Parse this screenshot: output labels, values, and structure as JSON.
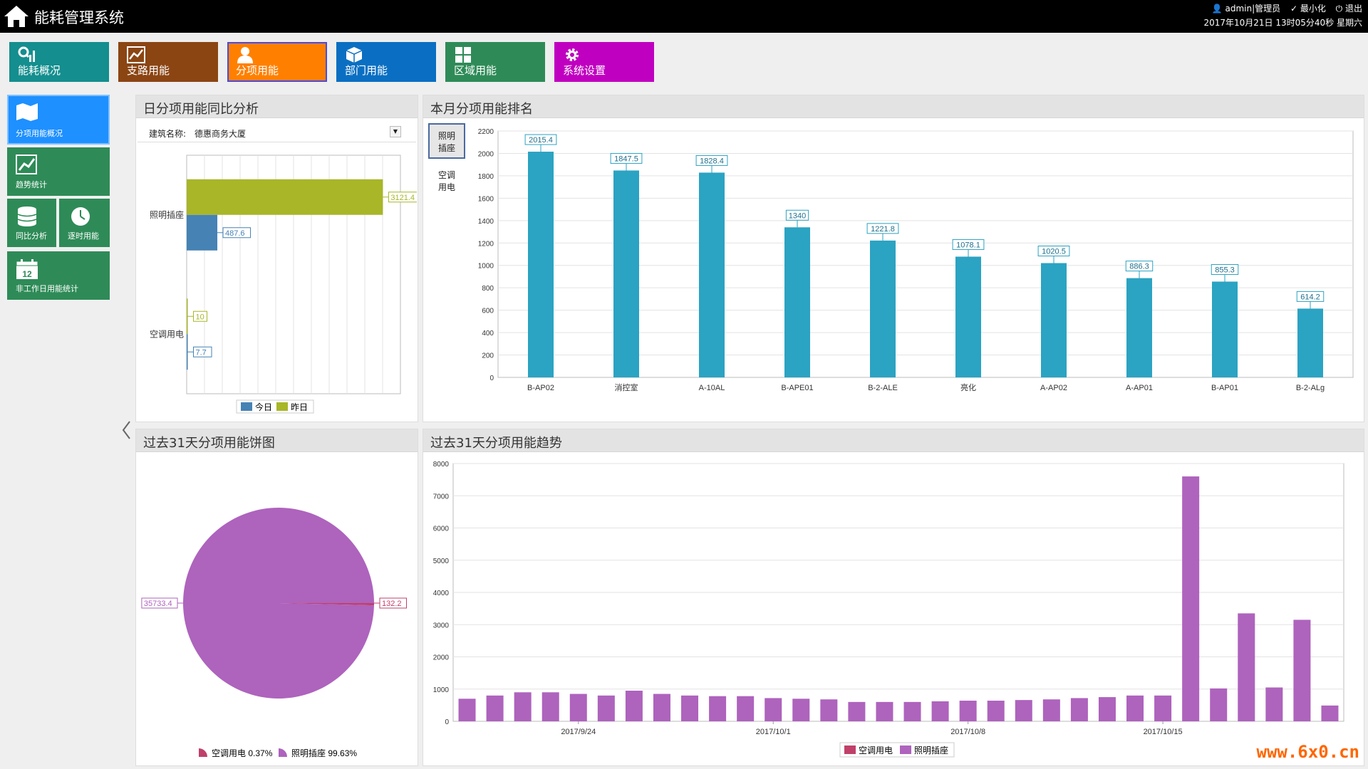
{
  "app": {
    "title": "能耗管理系统",
    "user": "admin|管理员",
    "minimize": "最小化",
    "logout": "退出",
    "datetime": "2017年10月21日 13时05分40秒 星期六"
  },
  "nav": [
    {
      "label": "能耗概况",
      "color": "#148e8e",
      "icon": "search-chart-icon"
    },
    {
      "label": "支路用能",
      "color": "#8b4513",
      "icon": "line-chart-icon"
    },
    {
      "label": "分项用能",
      "color": "#ff8000",
      "icon": "user-icon"
    },
    {
      "label": "部门用能",
      "color": "#0a6fc2",
      "icon": "cube-icon"
    },
    {
      "label": "区域用能",
      "color": "#2e8b57",
      "icon": "grid-icon"
    },
    {
      "label": "系统设置",
      "color": "#c000c0",
      "icon": "gear-icon"
    }
  ],
  "sidebar": [
    {
      "label": "分项用能概况",
      "icon": "map-icon",
      "color": "#1e90ff"
    },
    {
      "label": "趋势统计",
      "icon": "trend-icon",
      "color": "#2e8b57"
    },
    {
      "label": "同比分析",
      "icon": "database-icon",
      "color": "#2e8b57"
    },
    {
      "label": "逐时用能",
      "icon": "clock-icon",
      "color": "#2e8b57"
    },
    {
      "label": "非工作日用能统计",
      "icon": "calendar-icon",
      "color": "#2e8b57",
      "calendar_day": "12"
    }
  ],
  "panels": {
    "daily": {
      "title": "日分项用能同比分析",
      "building_label": "建筑名称:",
      "building_value": "德惠商务大厦"
    },
    "ranking": {
      "title": "本月分项用能排名",
      "tabs": [
        "照明插座",
        "空调用电"
      ]
    },
    "pie": {
      "title": "过去31天分项用能饼图"
    },
    "trend": {
      "title": "过去31天分项用能趋势"
    }
  },
  "colors": {
    "today": "#4682b4",
    "yesterday": "#a8b628",
    "rank_bar": "#2ba3c2",
    "pie_lighting": "#ae63bd",
    "pie_ac": "#c0406a",
    "trend_bar": "#ae63bd"
  },
  "chart_data": [
    {
      "type": "bar",
      "orientation": "horizontal",
      "categories": [
        "照明插座",
        "空调用电"
      ],
      "series": [
        {
          "name": "今日",
          "values": [
            487.6,
            7.7
          ]
        },
        {
          "name": "昨日",
          "values": [
            3121.4,
            10
          ]
        }
      ],
      "xlim": [
        0,
        3400
      ],
      "legend": "bottom",
      "grid": true
    },
    {
      "type": "bar",
      "categories": [
        "B-AP02",
        "消控室",
        "A-10AL",
        "B-APE01",
        "B-2-ALE",
        "亮化",
        "A-AP02",
        "A-AP01",
        "B-AP01",
        "B-2-ALg"
      ],
      "values": [
        2015.4,
        1847.5,
        1828.4,
        1340,
        1221.8,
        1078.1,
        1020.5,
        886.3,
        855.3,
        614.2
      ],
      "ylim": [
        0,
        2200
      ],
      "yticks": [
        0,
        200,
        400,
        600,
        800,
        1000,
        1200,
        1400,
        1600,
        1800,
        2000,
        2200
      ],
      "grid": true
    },
    {
      "type": "pie",
      "slices": [
        {
          "name": "空调用电",
          "value": 132.2,
          "percent": "0.37%"
        },
        {
          "name": "照明插座",
          "value": 35733.4,
          "percent": "99.63%"
        }
      ],
      "legend": "bottom"
    },
    {
      "type": "bar",
      "x_tick_labels": [
        "2017/9/24",
        "2017/10/1",
        "2017/10/8",
        "2017/10/15"
      ],
      "series": [
        {
          "name": "空调用电",
          "values": []
        },
        {
          "name": "照明插座",
          "values": [
            700,
            800,
            900,
            900,
            850,
            800,
            950,
            850,
            800,
            780,
            780,
            720,
            700,
            680,
            600,
            600,
            600,
            620,
            640,
            640,
            660,
            680,
            720,
            750,
            800,
            800,
            7600,
            1020,
            3350,
            1050,
            3150,
            490
          ]
        }
      ],
      "ylim": [
        0,
        8000
      ],
      "yticks": [
        0,
        1000,
        2000,
        3000,
        4000,
        5000,
        6000,
        7000,
        8000
      ],
      "legend": "bottom",
      "grid": true
    }
  ],
  "watermark": "www.6x0.cn"
}
